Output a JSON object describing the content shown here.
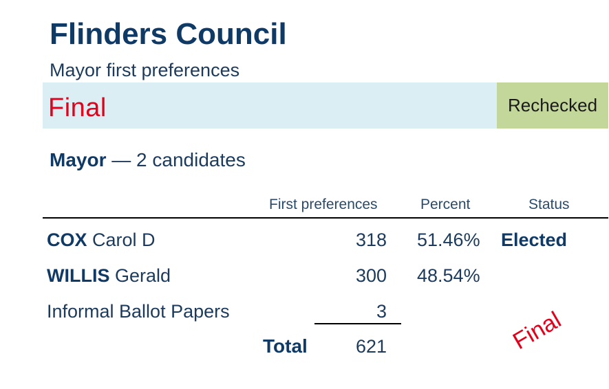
{
  "header": {
    "title": "Flinders Council",
    "subtitle": "Mayor first preferences"
  },
  "banner": {
    "status": "Final",
    "badge": "Rechecked",
    "colors": {
      "banner_bg": "#daeef3",
      "badge_bg": "#c4d79b",
      "status_text": "#e3001b"
    }
  },
  "section": {
    "office": "Mayor",
    "separator": "—",
    "candidate_count": "2 candidates"
  },
  "table": {
    "columns": [
      "First preferences",
      "Percent",
      "Status"
    ],
    "rows": [
      {
        "surname": "COX",
        "given": "Carol D",
        "votes": "318",
        "percent": "51.46%",
        "status": "Elected"
      },
      {
        "surname": "WILLIS",
        "given": "Gerald",
        "votes": "300",
        "percent": "48.54%",
        "status": ""
      }
    ],
    "informal": {
      "label": "Informal Ballot Papers",
      "votes": "3"
    },
    "total": {
      "label": "Total",
      "votes": "621"
    }
  },
  "stamp": {
    "text": "Final"
  }
}
